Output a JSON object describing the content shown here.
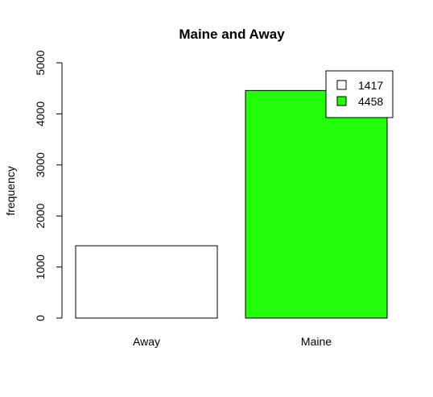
{
  "chart_data": {
    "type": "bar",
    "title": "Maine and Away",
    "xlabel": "",
    "ylabel": "frequency",
    "categories": [
      "Away",
      "Maine"
    ],
    "values": [
      1417,
      4458
    ],
    "bar_colors": [
      "#ffffff",
      "#22ff08"
    ],
    "ylim": [
      0,
      5000
    ],
    "yticks": [
      0,
      1000,
      2000,
      3000,
      4000,
      5000
    ],
    "grid": false,
    "legend": {
      "position": "top-right",
      "entries": [
        {
          "label": "1417",
          "color": "#ffffff"
        },
        {
          "label": "4458",
          "color": "#22ff08"
        }
      ]
    }
  }
}
